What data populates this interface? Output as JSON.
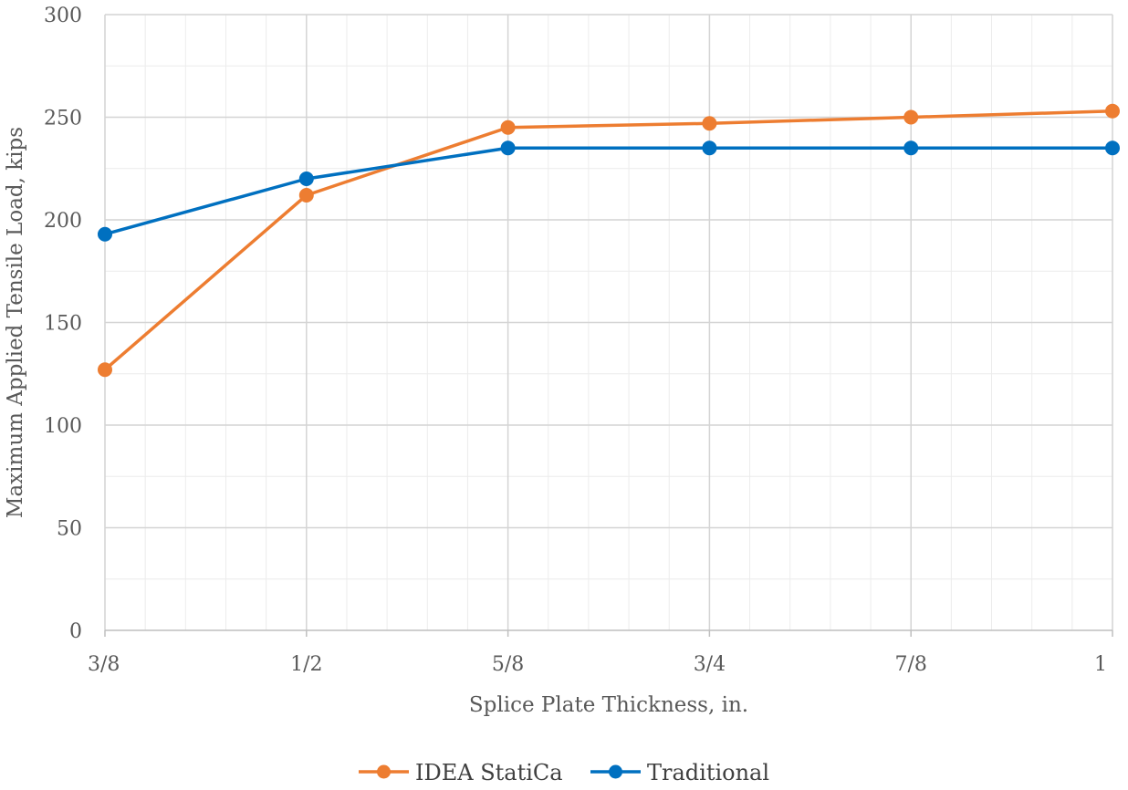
{
  "chart_data": {
    "type": "line",
    "xlabel": "Splice Plate Thickness, in.",
    "ylabel": "Maximum Applied Tensile Load, kips",
    "categories": [
      "3/8",
      "1/2",
      "5/8",
      "3/4",
      "7/8",
      "1"
    ],
    "ylim": [
      0,
      300
    ],
    "yticks": [
      0,
      50,
      100,
      150,
      200,
      250,
      300
    ],
    "grid": true,
    "legend_position": "bottom",
    "series": [
      {
        "name": "IDEA StatiCa",
        "color": "#ED7D31",
        "values": [
          127,
          212,
          245,
          247,
          250,
          253
        ]
      },
      {
        "name": "Traditional",
        "color": "#0070C0",
        "values": [
          193,
          220,
          235,
          235,
          235,
          235
        ]
      }
    ]
  }
}
